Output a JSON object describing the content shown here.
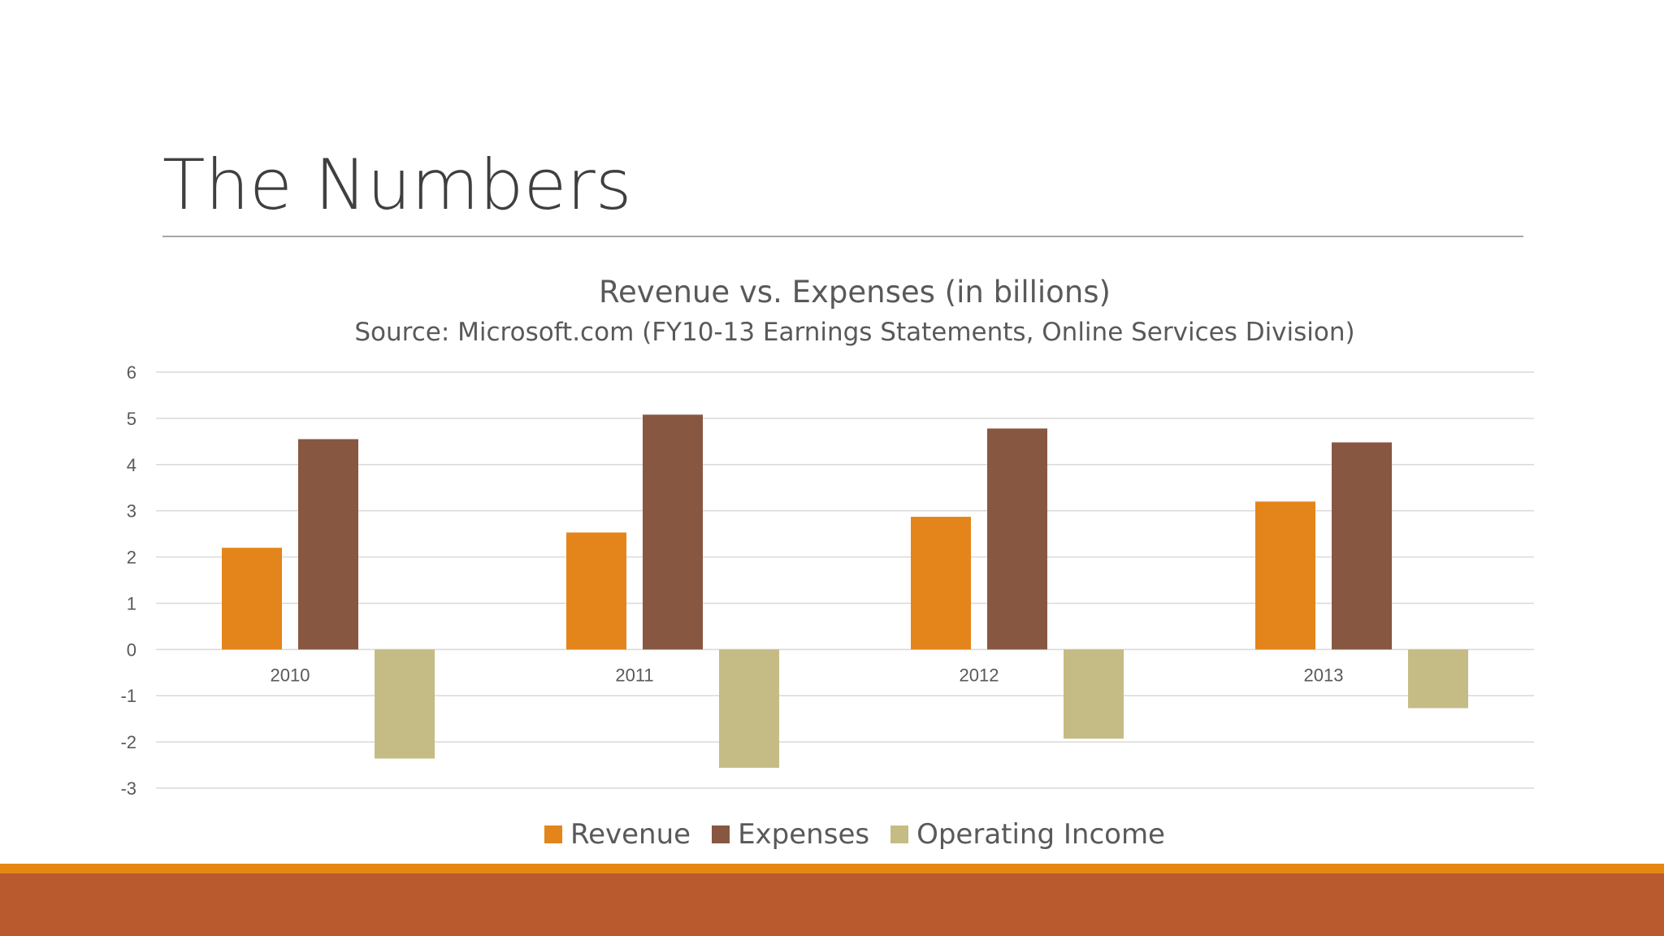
{
  "slide": {
    "title": "The Numbers"
  },
  "colors": {
    "revenue": "#e3851a",
    "expenses": "#885741",
    "operating_income": "#c5bc85",
    "band_light": "#e58714",
    "band_dark": "#b85a2d"
  },
  "chart_data": {
    "type": "bar",
    "title": "Revenue vs. Expenses (in billions)",
    "subtitle": "Source: Microsoft.com (FY10-13 Earnings Statements, Online Services Division)",
    "categories": [
      "2010",
      "2011",
      "2012",
      "2013"
    ],
    "series": [
      {
        "name": "Revenue",
        "values": [
          2.2,
          2.53,
          2.87,
          3.2
        ]
      },
      {
        "name": "Expenses",
        "values": [
          4.55,
          5.08,
          4.78,
          4.48
        ]
      },
      {
        "name": "Operating Income",
        "values": [
          -2.36,
          -2.56,
          -1.93,
          -1.27
        ]
      }
    ],
    "ylim": [
      -3,
      6
    ],
    "yticks": [
      "6",
      "5",
      "4",
      "3",
      "2",
      "1",
      "0",
      "-1",
      "-2",
      "-3"
    ],
    "grid": true,
    "legend_position": "bottom"
  }
}
